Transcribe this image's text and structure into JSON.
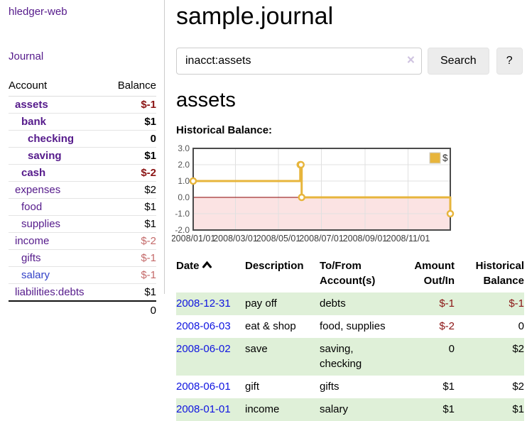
{
  "sidebar": {
    "app_title": "hledger-web",
    "journal_link": "Journal",
    "accounts_table": {
      "headers": {
        "account": "Account",
        "balance": "Balance"
      },
      "rows": [
        {
          "account": "assets",
          "balance": "$-1",
          "depth": 1,
          "bold": true
        },
        {
          "account": "bank",
          "balance": "$1",
          "depth": 2,
          "bold": true
        },
        {
          "account": "checking",
          "balance": "0",
          "depth": 3,
          "bold": true
        },
        {
          "account": "saving",
          "balance": "$1",
          "depth": 3,
          "bold": true
        },
        {
          "account": "cash",
          "balance": "$-2",
          "depth": 2,
          "bold": true
        },
        {
          "account": "expenses",
          "balance": "$2",
          "depth": 1,
          "bold": false
        },
        {
          "account": "food",
          "balance": "$1",
          "depth": 2,
          "bold": false
        },
        {
          "account": "supplies",
          "balance": "$1",
          "depth": 2,
          "bold": false
        },
        {
          "account": "income",
          "balance": "$-2",
          "depth": 1,
          "bold": false
        },
        {
          "account": "gifts",
          "balance": "$-1",
          "depth": 2,
          "bold": false
        },
        {
          "account": "salary",
          "balance": "$-1",
          "depth": 2,
          "bold": false,
          "link_style": "blue"
        },
        {
          "account": "liabilities:debts",
          "balance": "$1",
          "depth": 1,
          "bold": false
        }
      ],
      "total": "0"
    }
  },
  "main": {
    "title": "sample.journal",
    "search": {
      "value": "inacct:assets",
      "clear_icon": "×",
      "button_label": "Search",
      "help_label": "?"
    },
    "account_heading": "assets",
    "chart_label": "Historical Balance:",
    "chart_data": {
      "type": "line",
      "title": "Historical Balance:",
      "series": [
        {
          "name": "$",
          "color": "#e7b53c",
          "step": true,
          "points": [
            [
              "2008-01-01",
              1
            ],
            [
              "2008-06-01",
              2
            ],
            [
              "2008-06-02",
              2
            ],
            [
              "2008-06-03",
              0
            ],
            [
              "2008-12-31",
              -1
            ]
          ]
        }
      ],
      "x_range": [
        "2008-01-01",
        "2008-12-31"
      ],
      "y_range": [
        -2,
        3
      ],
      "y_ticks": [
        "3.0",
        "2.0",
        "1.0",
        "0.0",
        "-1.0",
        "-2.0"
      ],
      "x_ticks": [
        {
          "date": "2008-01-01",
          "label": "2008/01/01"
        },
        {
          "date": "2008-03-01",
          "label": "2008/03/01"
        },
        {
          "date": "2008-05-01",
          "label": "2008/05/01"
        },
        {
          "date": "2008-07-01",
          "label": "2008/07/01"
        },
        {
          "date": "2008-09-01",
          "label": "2008/09/01"
        },
        {
          "date": "2008-11-01",
          "label": "2008/11/01"
        }
      ],
      "legend": {
        "position": "top-right",
        "label": "$"
      },
      "grid": true,
      "negative_band_color": "#fbe3e3",
      "zero_line_color": "#8b0000"
    },
    "register_table": {
      "headers": [
        {
          "label": "Date",
          "sort": "asc"
        },
        {
          "label": "Description"
        },
        {
          "label": "To/From Account(s)"
        },
        {
          "label": "Amount Out/In",
          "align": "right"
        },
        {
          "label": "Historical Balance",
          "align": "right"
        }
      ],
      "rows": [
        {
          "date": "2008-12-31",
          "description": "pay off",
          "accounts": "debts",
          "amount": "$-1",
          "balance": "$-1"
        },
        {
          "date": "2008-06-03",
          "description": "eat & shop",
          "accounts": "food, supplies",
          "amount": "$-2",
          "balance": "0"
        },
        {
          "date": "2008-06-02",
          "description": "save",
          "accounts": "saving,\nchecking",
          "amount": "0",
          "balance": "$2"
        },
        {
          "date": "2008-06-01",
          "description": "gift",
          "accounts": "gifts",
          "amount": "$1",
          "balance": "$2"
        },
        {
          "date": "2008-01-01",
          "description": "income",
          "accounts": "salary",
          "amount": "$1",
          "balance": "$1"
        }
      ]
    }
  },
  "colors": {
    "link_purple": "#551a8b",
    "link_blue": "#0f14e0",
    "negative_strong": "#8b1414",
    "negative_weak": "#c46a6a",
    "row_stripe_green": "#dff0d8",
    "chart_line_gold": "#e7b53c",
    "chart_negative_band": "#fbe3e3",
    "chart_zero_line": "#8b0000",
    "button_bg": "#ececec"
  }
}
